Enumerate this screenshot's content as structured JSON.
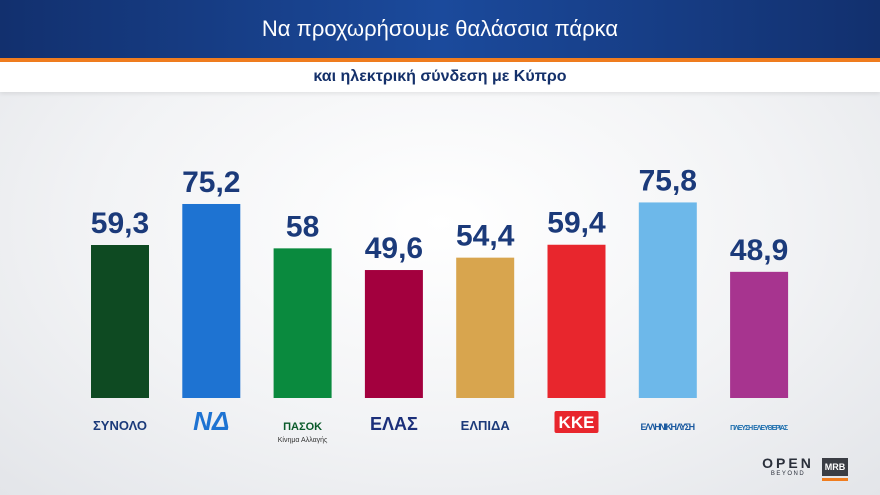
{
  "header": {
    "title": "Να προχωρήσουμε θαλάσσια πάρκα",
    "subtitle": "και ηλεκτρική σύνδεση με Κύπρο"
  },
  "chart_data": {
    "type": "bar",
    "categories": [
      "ΣΥΝΟΛΟ",
      "ΝΔ",
      "ΠΑΣΟΚ",
      "ΕΛΑΣ",
      "ΕΛΠΙΔΑ",
      "ΚΚΕ",
      "ΕΛΛΗΝΙΚΗ ΛΥΣΗ",
      "ΠΛΕΥΣΗ ΕΛΕΥΘΕΡΙΑΣ"
    ],
    "values": [
      59.3,
      75.2,
      58,
      49.6,
      54.4,
      59.4,
      75.8,
      48.9
    ],
    "value_labels": [
      "59,3",
      "75,2",
      "58",
      "49,6",
      "54,4",
      "59,4",
      "75,8",
      "48,9"
    ],
    "colors": [
      "#0e4a22",
      "#1e73d2",
      "#0a8a3e",
      "#a3003e",
      "#d8a54e",
      "#e8262d",
      "#6db8ea",
      "#a7348f"
    ],
    "category_sublabels": [
      "",
      "",
      "Κίνημα Αλλαγής",
      "",
      "",
      "",
      "",
      ""
    ],
    "ylim": [
      0,
      100
    ],
    "grid": false,
    "legend": "none"
  },
  "brand": {
    "open": "OPEN",
    "beyond": "BEYOND",
    "pollster": "MRB"
  }
}
